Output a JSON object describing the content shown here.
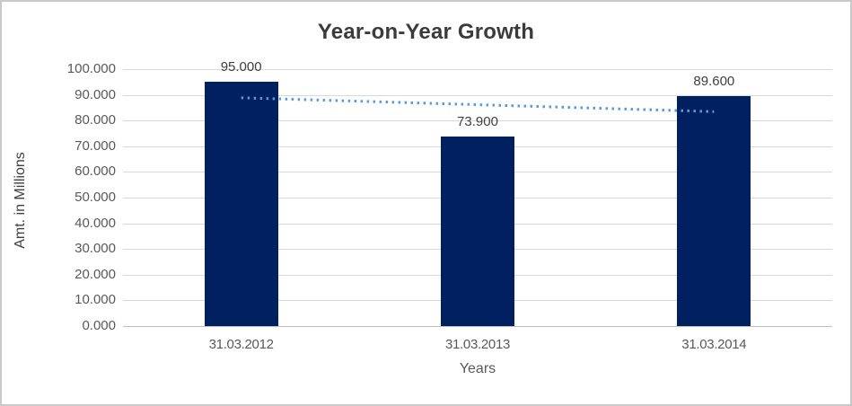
{
  "window": {
    "background": "#ffffff",
    "border_color": "#c9c9c9"
  },
  "chart_data": {
    "type": "bar",
    "title": "Year-on-Year Growth",
    "xlabel": "Years",
    "ylabel": "Amt. in Millions",
    "categories": [
      "31.03.2012",
      "31.03.2013",
      "31.03.2014"
    ],
    "values": [
      95.0,
      73.9,
      89.6
    ],
    "data_labels": [
      "95.000",
      "73.900",
      "89.600"
    ],
    "ylim": [
      0,
      100
    ],
    "ytick_step": 10,
    "ytick_labels": [
      "0.000",
      "10.000",
      "20.000",
      "30.000",
      "40.000",
      "50.000",
      "60.000",
      "70.000",
      "80.000",
      "90.000",
      "100.000"
    ],
    "grid": "horizontal",
    "legend": "none",
    "trendline": {
      "type": "linear",
      "style": "dotted",
      "color": "#5B9BD5"
    },
    "colors": {
      "bar": "#002060",
      "gridline": "#d9d9d9",
      "axis_line": "#bfbfbf",
      "title_text": "#3b3b3b",
      "label_text": "#404040",
      "tick_text": "#595959"
    }
  }
}
